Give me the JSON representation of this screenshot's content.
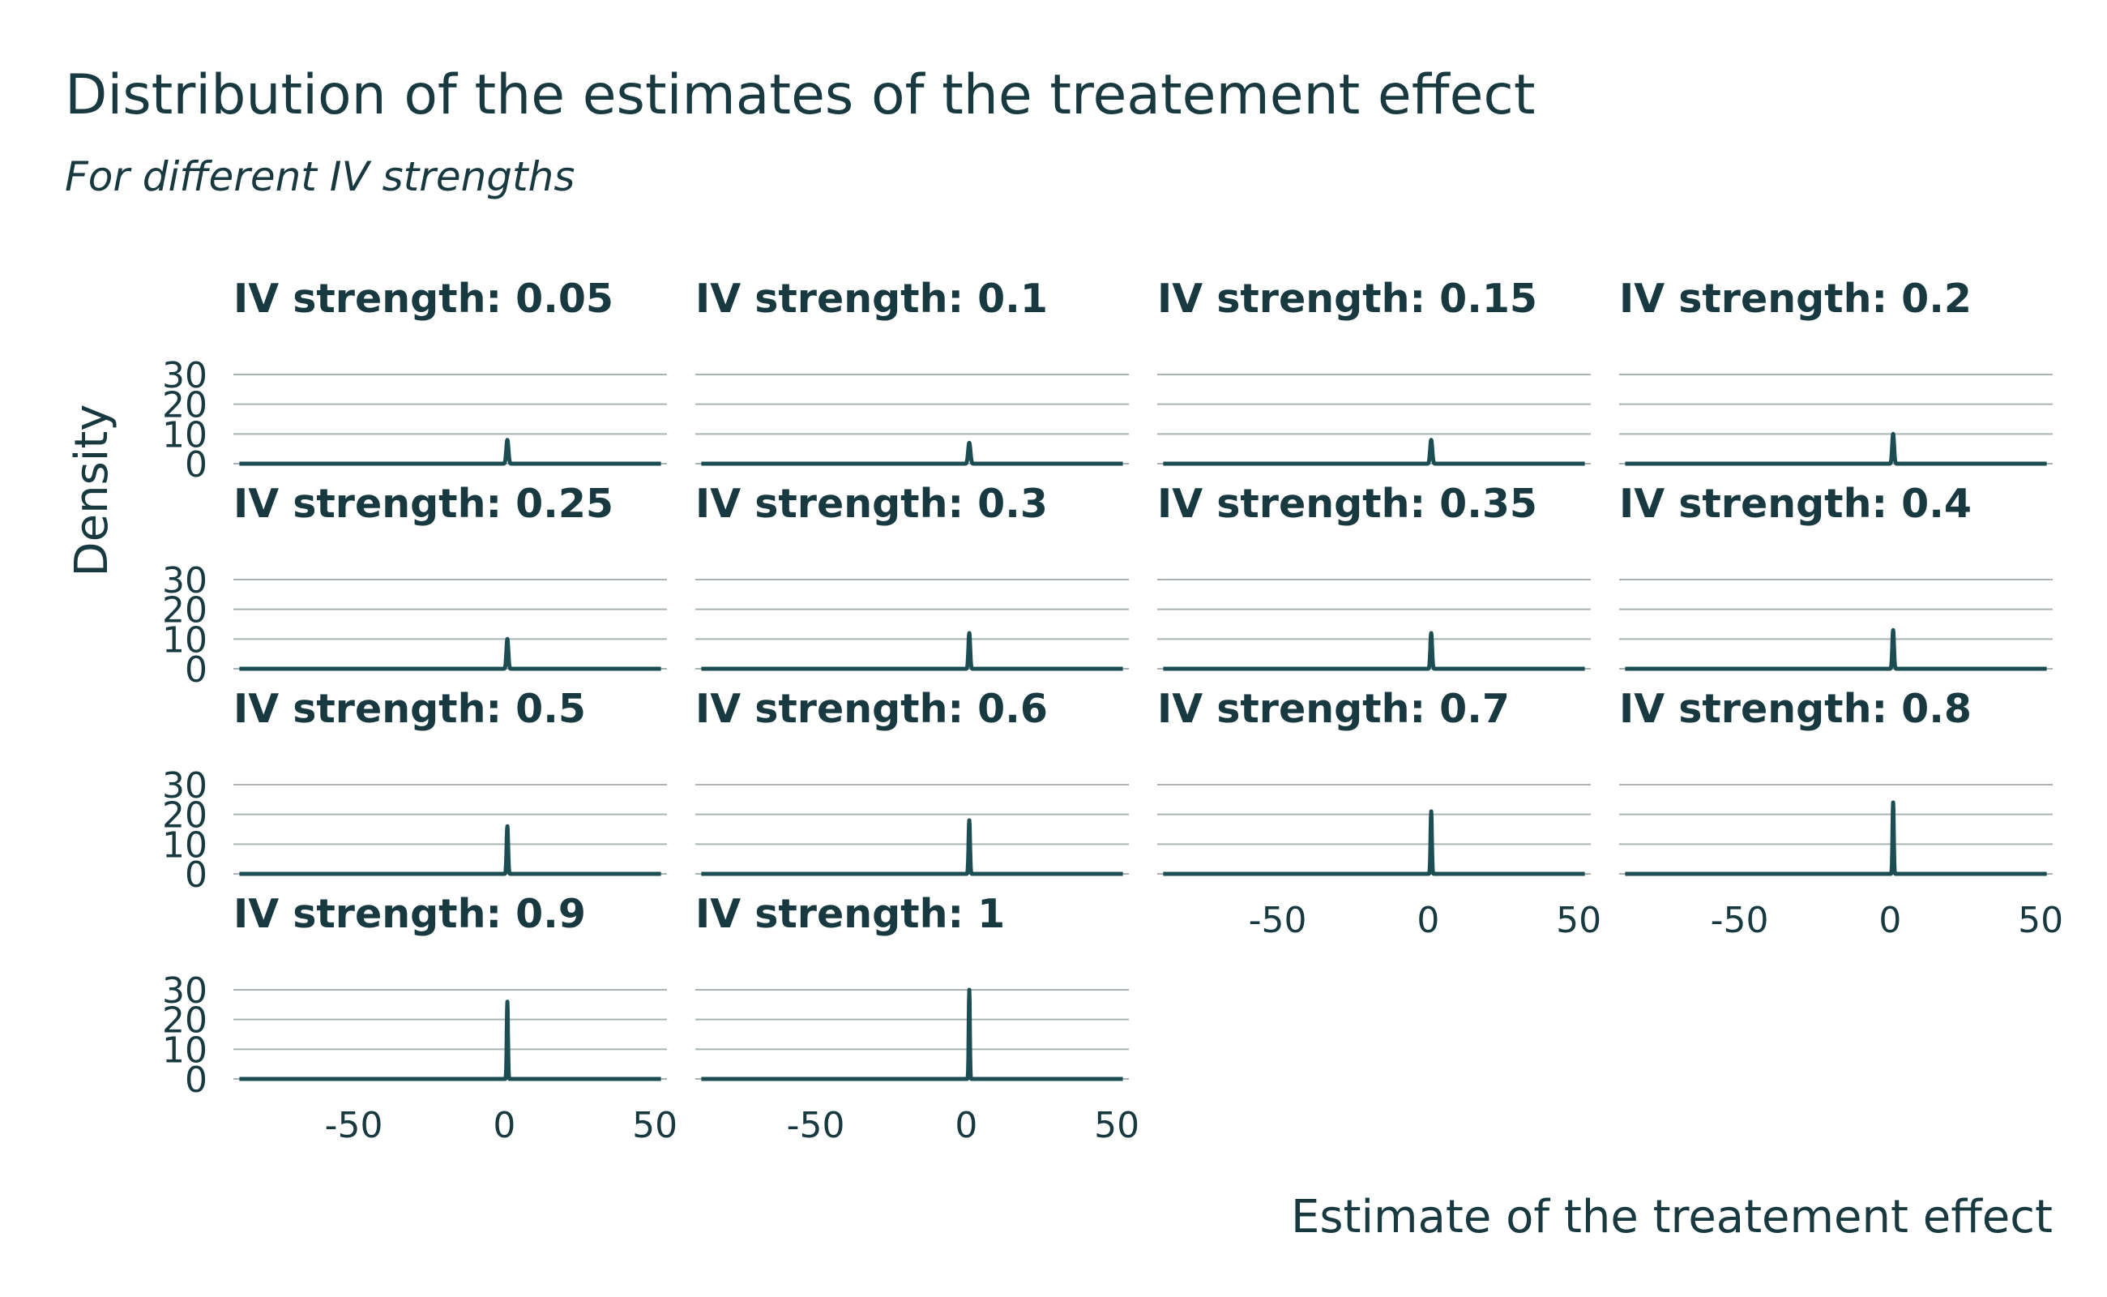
{
  "chart_data": {
    "type": "line",
    "title": "Distribution of the estimates of the treatement effect",
    "subtitle": "For different IV strengths",
    "xlabel": "Estimate of the treatement effect",
    "ylabel": "Density",
    "xlim": [
      -90,
      54
    ],
    "ylim": [
      0,
      30
    ],
    "x_ticks": [
      -50,
      0,
      50
    ],
    "y_ticks": [
      0,
      10,
      20,
      30
    ],
    "grid": true,
    "facet_label_prefix": "IV strength: ",
    "panels": [
      {
        "strength": "0.05",
        "peak_x": 1,
        "peak_density": 8
      },
      {
        "strength": "0.1",
        "peak_x": 1,
        "peak_density": 7
      },
      {
        "strength": "0.15",
        "peak_x": 1,
        "peak_density": 8
      },
      {
        "strength": "0.2",
        "peak_x": 1,
        "peak_density": 10
      },
      {
        "strength": "0.25",
        "peak_x": 1,
        "peak_density": 10
      },
      {
        "strength": "0.3",
        "peak_x": 1,
        "peak_density": 12
      },
      {
        "strength": "0.35",
        "peak_x": 1,
        "peak_density": 12
      },
      {
        "strength": "0.4",
        "peak_x": 1,
        "peak_density": 13
      },
      {
        "strength": "0.5",
        "peak_x": 1,
        "peak_density": 16
      },
      {
        "strength": "0.6",
        "peak_x": 1,
        "peak_density": 18
      },
      {
        "strength": "0.7",
        "peak_x": 1,
        "peak_density": 21
      },
      {
        "strength": "0.8",
        "peak_x": 1,
        "peak_density": 24
      },
      {
        "strength": "0.9",
        "peak_x": 1,
        "peak_density": 26
      },
      {
        "strength": "1",
        "peak_x": 1,
        "peak_density": 30
      }
    ],
    "colors": {
      "line": "#1b4d52",
      "text": "#17393f",
      "grid": "#a9b3b5"
    }
  }
}
